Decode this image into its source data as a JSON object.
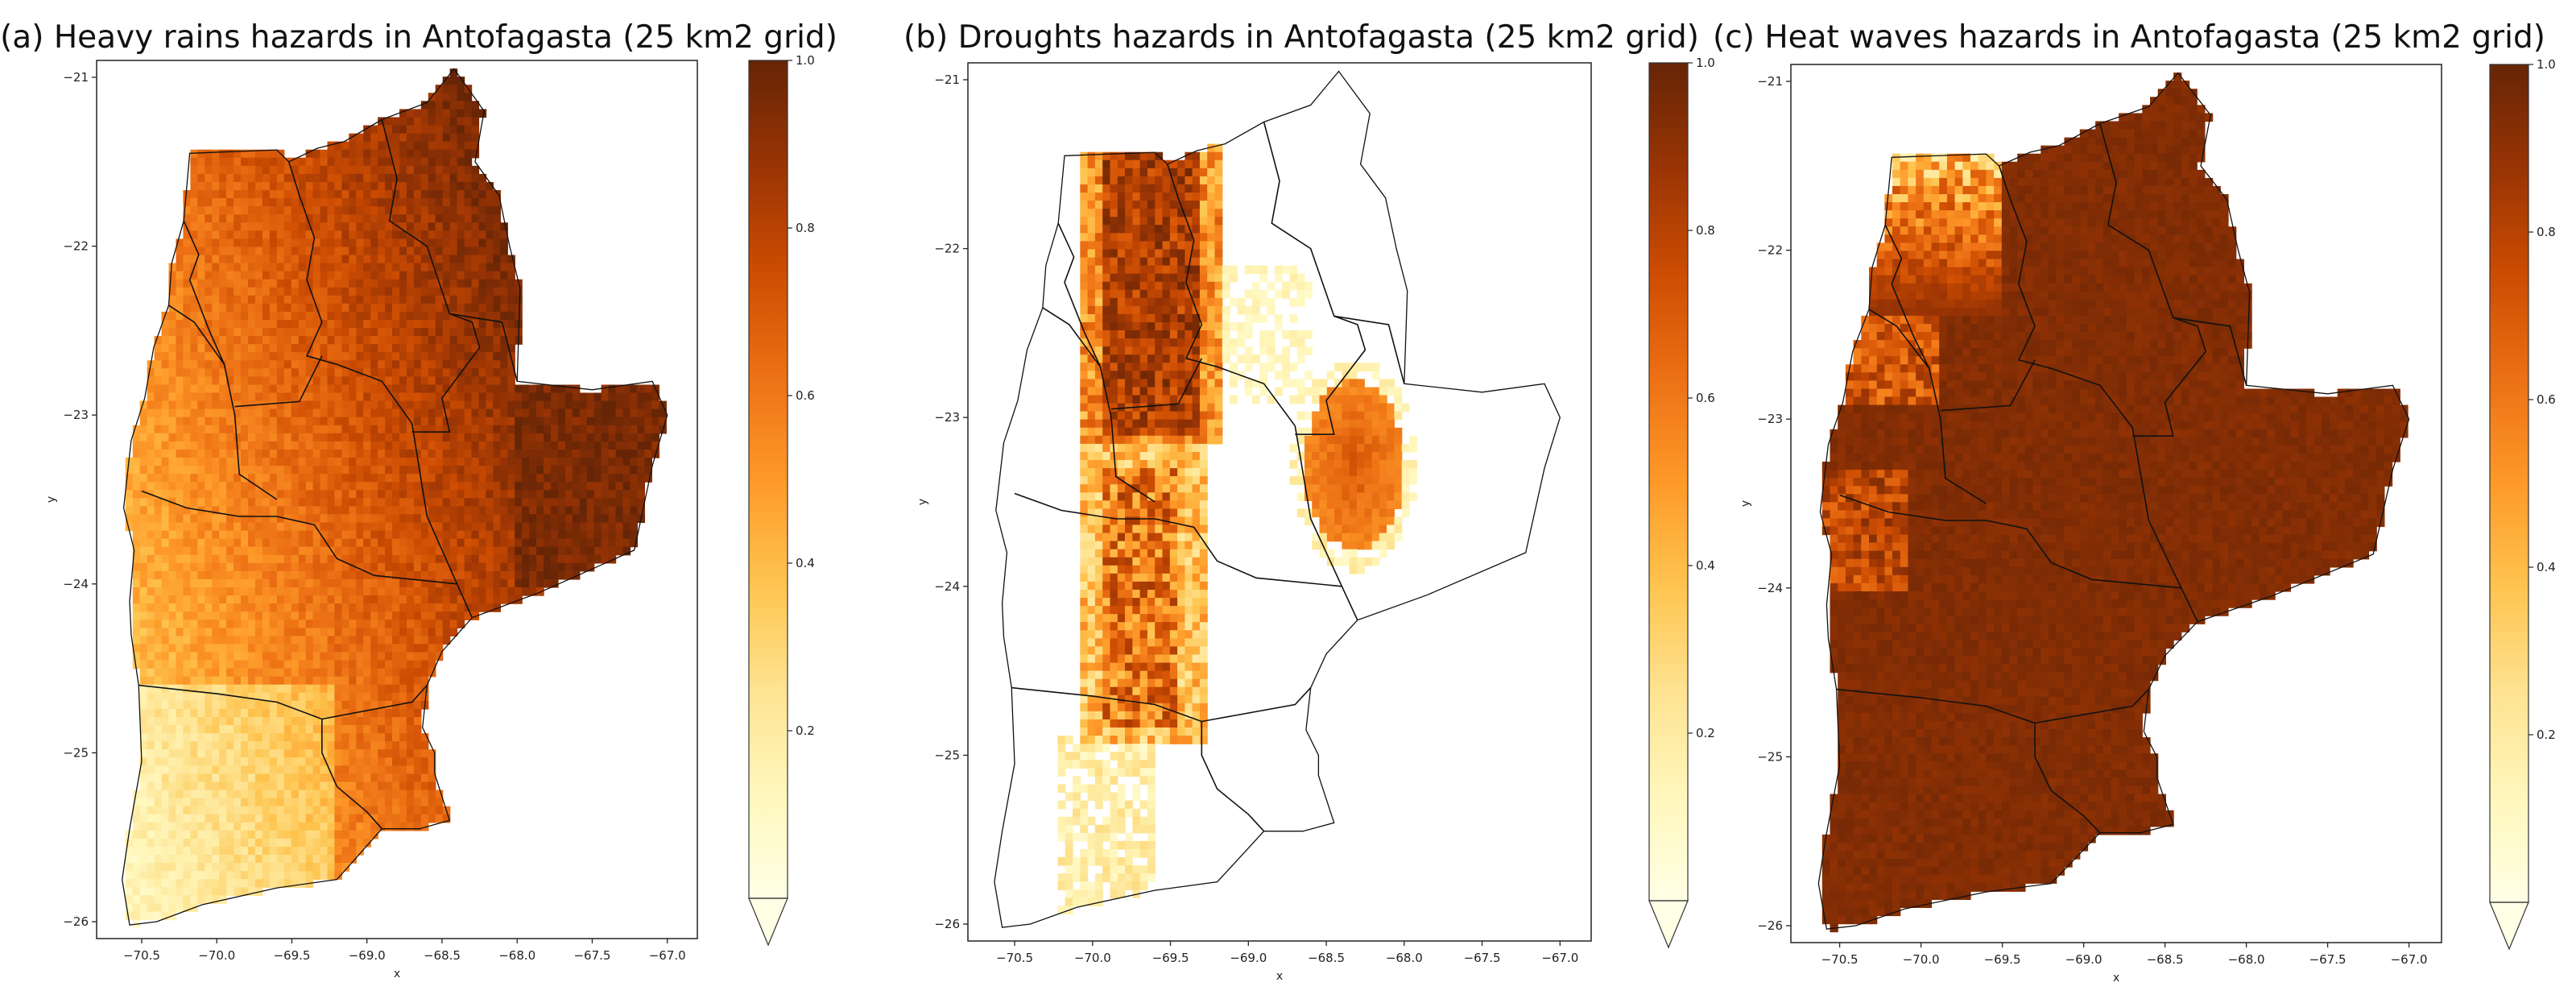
{
  "panels": [
    {
      "title": "(a) Heavy rains hazards in Antofagasta (25 km2 grid)",
      "hazard": "heavy_rains",
      "xlabel": "x",
      "ylabel": "y",
      "x_ticks": [
        "−70.5",
        "−70.0",
        "−69.5",
        "−69.0",
        "−68.5",
        "−68.0",
        "−67.5",
        "−67.0"
      ],
      "y_ticks": [
        "−21",
        "−22",
        "−23",
        "−24",
        "−25",
        "−26"
      ],
      "colorbar_ticks": [
        "0.2",
        "0.4",
        "0.6",
        "0.8",
        "1.0"
      ],
      "colormap": "YlOrBr",
      "value_range": [
        0,
        1
      ]
    },
    {
      "title": "(b) Droughts hazards in Antofagasta (25 km2 grid)",
      "hazard": "droughts",
      "xlabel": "x",
      "ylabel": "y",
      "x_ticks": [
        "−70.5",
        "−70.0",
        "−69.5",
        "−69.0",
        "−68.5",
        "−68.0",
        "−67.5",
        "−67.0"
      ],
      "y_ticks": [
        "−21",
        "−22",
        "−23",
        "−24",
        "−25",
        "−26"
      ],
      "colorbar_ticks": [
        "0.2",
        "0.4",
        "0.6",
        "0.8",
        "1.0"
      ],
      "colormap": "YlOrBr",
      "value_range": [
        0,
        1
      ]
    },
    {
      "title": "(c) Heat waves hazards in Antofagasta (25 km2 grid)",
      "hazard": "heat_waves",
      "xlabel": "x",
      "ylabel": "y",
      "x_ticks": [
        "−70.5",
        "−70.0",
        "−69.5",
        "−69.0",
        "−68.5",
        "−68.0",
        "−67.5",
        "−67.0"
      ],
      "y_ticks": [
        "−21",
        "−22",
        "−23",
        "−24",
        "−25",
        "−26"
      ],
      "colorbar_ticks": [
        "0.2",
        "0.4",
        "0.6",
        "0.8",
        "1.0"
      ],
      "colormap": "YlOrBr",
      "value_range": [
        0,
        1
      ]
    }
  ],
  "colors": {
    "cmap_stops": [
      "#ffffe5",
      "#fff7bc",
      "#fee391",
      "#fec44f",
      "#fe9929",
      "#ec7014",
      "#cc4c02",
      "#993404",
      "#662506"
    ],
    "boundary": "#111111"
  }
}
